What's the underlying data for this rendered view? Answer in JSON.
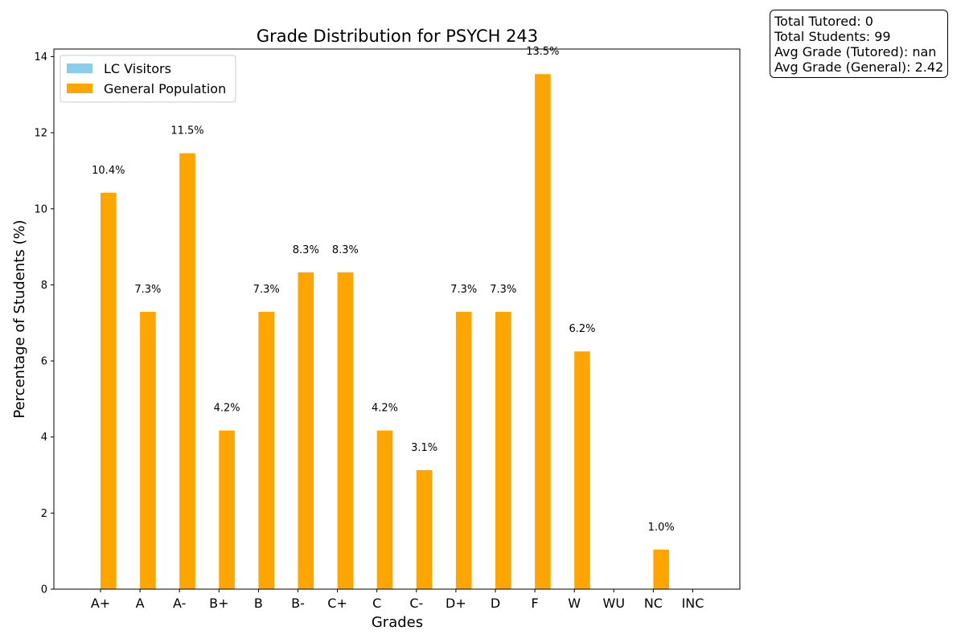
{
  "chart_data": {
    "type": "bar",
    "title": "Grade Distribution for PSYCH 243",
    "xlabel": "Grades",
    "ylabel": "Percentage of Students (%)",
    "ylim": [
      0,
      14.2
    ],
    "yticks": [
      0,
      2,
      4,
      6,
      8,
      10,
      12,
      14
    ],
    "categories": [
      "A+",
      "A",
      "A-",
      "B+",
      "B",
      "B-",
      "C+",
      "C",
      "C-",
      "D+",
      "D",
      "F",
      "W",
      "WU",
      "NC",
      "INC"
    ],
    "series": [
      {
        "name": "LC Visitors",
        "color": "#87CEEB",
        "values": [
          0,
          0,
          0,
          0,
          0,
          0,
          0,
          0,
          0,
          0,
          0,
          0,
          0,
          0,
          0,
          0
        ]
      },
      {
        "name": "General Population",
        "color": "#FFA500",
        "values": [
          10.42,
          7.29,
          11.46,
          4.17,
          7.29,
          8.33,
          8.33,
          4.17,
          3.13,
          7.29,
          7.29,
          13.54,
          6.25,
          0,
          1.04,
          0
        ],
        "labels": [
          "10.4%",
          "7.3%",
          "11.5%",
          "4.2%",
          "7.3%",
          "8.3%",
          "8.3%",
          "4.2%",
          "3.1%",
          "7.3%",
          "7.3%",
          "13.5%",
          "6.2%",
          "",
          "1.0%",
          ""
        ]
      }
    ],
    "legend": {
      "placement": "upper-left"
    },
    "grid": false
  },
  "stats": {
    "total_tutored": "Total Tutored: 0",
    "total_students": "Total Students: 99",
    "avg_tutored": "Avg Grade (Tutored): nan",
    "avg_general": "Avg Grade (General): 2.42"
  }
}
